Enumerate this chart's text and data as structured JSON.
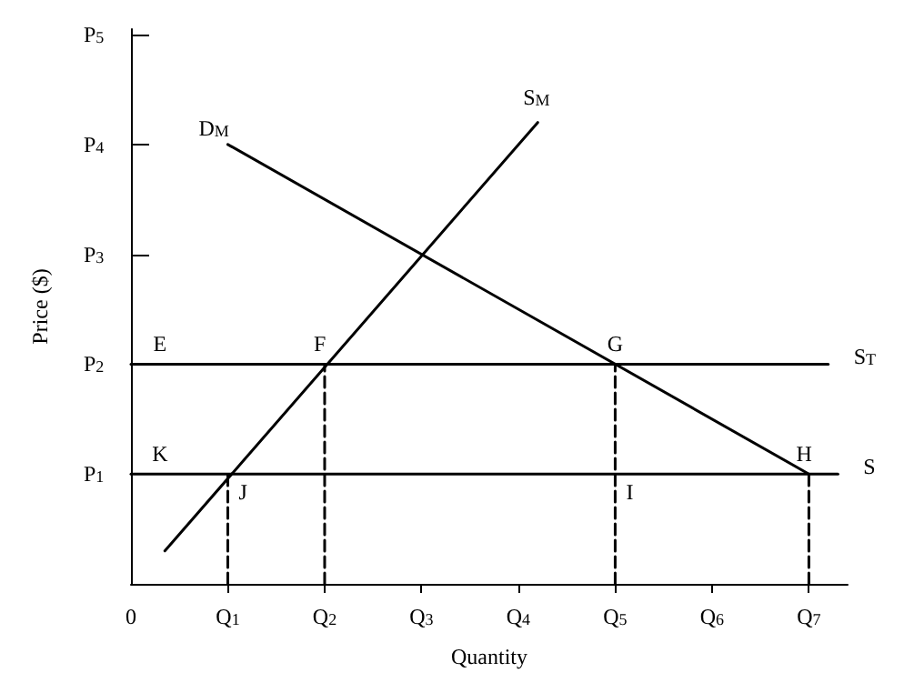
{
  "chart_data": {
    "type": "line",
    "xlabel": "Quantity",
    "ylabel": "Price ($)",
    "xlim": [
      0,
      7.4
    ],
    "ylim": [
      0,
      5.05
    ],
    "xticks": [
      {
        "value": 0,
        "label": "0"
      },
      {
        "value": 1,
        "label": "Q$_{1}$"
      },
      {
        "value": 2,
        "label": "Q$_{2}$"
      },
      {
        "value": 3,
        "label": "Q$_{3}$"
      },
      {
        "value": 4,
        "label": "Q$_{4}$"
      },
      {
        "value": 5,
        "label": "Q$_{5}$"
      },
      {
        "value": 6,
        "label": "Q$_{6}$"
      },
      {
        "value": 7,
        "label": "Q$_{7}$"
      }
    ],
    "yticks": [
      {
        "value": 1,
        "label": "P$_{1}$"
      },
      {
        "value": 2,
        "label": "P$_{2}$"
      },
      {
        "value": 3,
        "label": "P$_{3}$"
      },
      {
        "value": 4,
        "label": "P$_{4}$"
      },
      {
        "value": 5,
        "label": "P$_{5}$"
      }
    ],
    "grid": false,
    "legend": false,
    "marker": "none",
    "series": [
      {
        "name": "S$_{M}$",
        "color": "#000000",
        "x": [
          0.35,
          4.2
        ],
        "values": [
          0.3,
          4.2
        ]
      },
      {
        "name": "D$_{M}$",
        "color": "#000000",
        "x": [
          7,
          1
        ],
        "values": [
          1,
          4
        ]
      },
      {
        "name": "S$_{T}$",
        "color": "#000000",
        "x": [
          0,
          7.2
        ],
        "values": [
          2,
          2
        ]
      },
      {
        "name": "S",
        "color": "#000000",
        "x": [
          0,
          7.3
        ],
        "values": [
          1,
          1
        ]
      },
      {
        "color": "#000000",
        "line_style": "dashed",
        "x": [
          1,
          1
        ],
        "values": [
          0,
          1
        ]
      },
      {
        "color": "#000000",
        "line_style": "dashed",
        "x": [
          2,
          2
        ],
        "values": [
          0,
          2
        ]
      },
      {
        "color": "#000000",
        "line_style": "dashed",
        "x": [
          5,
          5
        ],
        "values": [
          0,
          2
        ]
      },
      {
        "color": "#000000",
        "line_style": "dashed",
        "x": [
          7,
          7
        ],
        "values": [
          0,
          1
        ]
      }
    ],
    "annotations": [
      {
        "text": "E",
        "x": 0.3,
        "y": 2
      },
      {
        "text": "F",
        "x": 1.95,
        "y": 2
      },
      {
        "text": "G",
        "x": 5,
        "y": 2
      },
      {
        "text": "K",
        "x": 0.3,
        "y": 1
      },
      {
        "text": "J",
        "x": 1,
        "y": 1
      },
      {
        "text": "I",
        "x": 5,
        "y": 1
      },
      {
        "text": "H",
        "x": 6.95,
        "y": 1
      }
    ]
  }
}
